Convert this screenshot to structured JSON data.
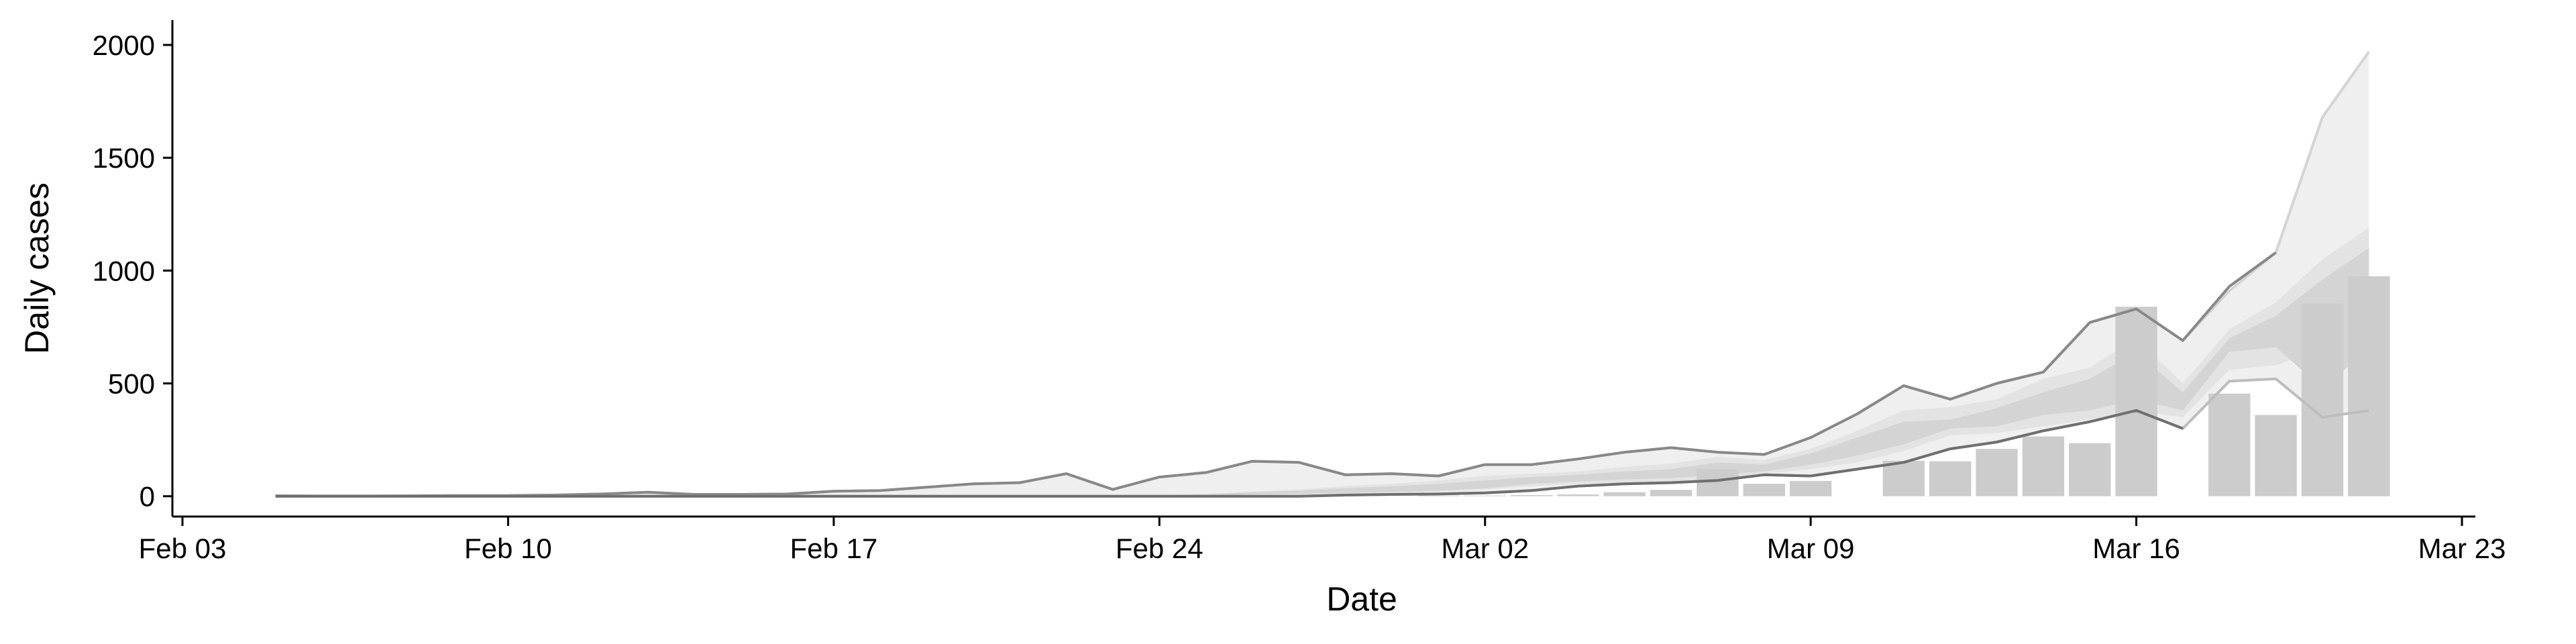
{
  "chart_data": {
    "type": "bar",
    "xlabel": "Date",
    "ylabel": "Daily cases",
    "ylim": [
      -90,
      2110
    ],
    "xlim": [
      "2020-02-03",
      "2020-03-23"
    ],
    "grid": false,
    "x_ticks": [
      {
        "date": "2020-02-03",
        "label": "Feb 03"
      },
      {
        "date": "2020-02-10",
        "label": "Feb 10"
      },
      {
        "date": "2020-02-17",
        "label": "Feb 17"
      },
      {
        "date": "2020-02-24",
        "label": "Feb 24"
      },
      {
        "date": "2020-03-02",
        "label": "Mar 02"
      },
      {
        "date": "2020-03-09",
        "label": "Mar 09"
      },
      {
        "date": "2020-03-16",
        "label": "Mar 16"
      },
      {
        "date": "2020-03-23",
        "label": "Mar 23"
      }
    ],
    "y_ticks": [
      0,
      500,
      1000,
      1500,
      2000
    ],
    "dates": [
      "2020-02-05",
      "2020-02-06",
      "2020-02-07",
      "2020-02-08",
      "2020-02-09",
      "2020-02-10",
      "2020-02-11",
      "2020-02-12",
      "2020-02-13",
      "2020-02-14",
      "2020-02-15",
      "2020-02-16",
      "2020-02-17",
      "2020-02-18",
      "2020-02-19",
      "2020-02-20",
      "2020-02-21",
      "2020-02-22",
      "2020-02-23",
      "2020-02-24",
      "2020-02-25",
      "2020-02-26",
      "2020-02-27",
      "2020-02-28",
      "2020-02-29",
      "2020-03-01",
      "2020-03-02",
      "2020-03-03",
      "2020-03-04",
      "2020-03-05",
      "2020-03-06",
      "2020-03-07",
      "2020-03-08",
      "2020-03-09",
      "2020-03-10",
      "2020-03-11",
      "2020-03-12",
      "2020-03-13",
      "2020-03-14",
      "2020-03-15",
      "2020-03-16",
      "2020-03-17",
      "2020-03-18",
      "2020-03-19",
      "2020-03-20",
      "2020-03-21"
    ],
    "bars": {
      "dates": [
        "2020-03-01",
        "2020-03-02",
        "2020-03-03",
        "2020-03-04",
        "2020-03-05",
        "2020-03-06",
        "2020-03-07",
        "2020-03-08",
        "2020-03-09",
        "2020-03-10",
        "2020-03-11",
        "2020-03-12",
        "2020-03-13",
        "2020-03-14",
        "2020-03-15",
        "2020-03-16",
        "2020-03-17",
        "2020-03-18",
        "2020-03-19",
        "2020-03-20",
        "2020-03-21"
      ],
      "values": [
        3,
        3,
        5,
        8,
        18,
        28,
        120,
        55,
        68,
        0,
        157,
        155,
        210,
        265,
        235,
        840,
        0,
        455,
        360,
        855,
        975
      ],
      "color": "#cccccc"
    },
    "bands": [
      {
        "color": "#efefef",
        "lower": [
          0,
          0,
          0,
          0,
          0,
          0,
          0,
          0,
          0,
          0,
          0,
          0,
          0,
          0,
          0,
          0,
          0,
          0,
          0,
          0,
          0,
          0,
          0,
          5,
          8,
          10,
          15,
          25,
          45,
          55,
          60,
          70,
          95,
          90,
          120,
          150,
          210,
          240,
          290,
          330,
          380,
          300,
          510,
          520,
          350,
          380
        ],
        "upper": [
          2,
          1,
          1,
          2,
          3,
          3,
          5,
          10,
          18,
          8,
          8,
          10,
          22,
          25,
          40,
          55,
          60,
          100,
          30,
          85,
          105,
          155,
          150,
          95,
          100,
          90,
          140,
          140,
          165,
          195,
          215,
          195,
          185,
          260,
          365,
          490,
          430,
          500,
          550,
          770,
          830,
          690,
          910,
          1080,
          1680,
          1970
        ],
        "upper_line_color": "#d0d0d0",
        "lower_line_color": "#c8c8c8"
      },
      {
        "color": "#e3e3e3",
        "lower": [
          0,
          0,
          0,
          0,
          0,
          0,
          0,
          0,
          0,
          0,
          0,
          0,
          0,
          0,
          0,
          0,
          0,
          0,
          0,
          0,
          0,
          5,
          8,
          10,
          15,
          20,
          30,
          45,
          55,
          60,
          65,
          75,
          100,
          120,
          150,
          200,
          270,
          280,
          310,
          340,
          380,
          350,
          560,
          580,
          660,
          720
        ],
        "upper": [
          0,
          0,
          0,
          0,
          0,
          0,
          0,
          0,
          0,
          0,
          0,
          0,
          0,
          0,
          0,
          0,
          0,
          0,
          0,
          5,
          10,
          20,
          30,
          45,
          55,
          70,
          90,
          100,
          110,
          130,
          145,
          175,
          160,
          210,
          290,
          380,
          395,
          430,
          520,
          570,
          700,
          500,
          740,
          860,
          1050,
          1190
        ],
        "upper_line_color": null,
        "lower_line_color": null
      },
      {
        "color": "#d4d4d4",
        "lower": [
          0,
          0,
          0,
          0,
          0,
          0,
          0,
          0,
          0,
          0,
          0,
          0,
          0,
          0,
          0,
          0,
          0,
          0,
          0,
          0,
          0,
          10,
          12,
          15,
          20,
          25,
          35,
          55,
          65,
          75,
          80,
          95,
          110,
          140,
          180,
          230,
          300,
          310,
          360,
          380,
          430,
          380,
          640,
          660,
          480,
          650
        ],
        "upper": [
          0,
          0,
          0,
          0,
          0,
          0,
          0,
          0,
          0,
          0,
          0,
          0,
          0,
          0,
          0,
          0,
          0,
          0,
          0,
          5,
          8,
          18,
          25,
          35,
          45,
          55,
          70,
          85,
          95,
          110,
          120,
          150,
          140,
          190,
          260,
          330,
          340,
          390,
          460,
          520,
          640,
          460,
          700,
          800,
          960,
          1100
        ],
        "upper_line_color": null,
        "lower_line_color": null
      }
    ],
    "lines": [
      {
        "values": [
          2,
          1,
          1,
          2,
          3,
          3,
          5,
          10,
          18,
          8,
          8,
          10,
          22,
          25,
          40,
          55,
          60,
          100,
          30,
          85,
          105,
          155,
          150,
          95,
          100,
          90,
          140,
          140,
          165,
          195,
          215,
          195,
          185,
          260,
          365,
          490,
          430,
          500,
          550,
          770,
          830,
          690,
          910,
          1080,
          1680,
          1970
        ],
        "color": "#d4d4d4"
      },
      {
        "values": [
          2,
          1,
          1,
          2,
          3,
          3,
          5,
          10,
          18,
          8,
          8,
          10,
          22,
          25,
          40,
          55,
          60,
          100,
          30,
          85,
          105,
          155,
          150,
          95,
          100,
          90,
          140,
          140,
          165,
          195,
          215,
          195,
          185,
          260,
          365,
          490,
          430,
          500,
          550,
          770,
          830,
          690,
          930,
          1080,
          null,
          null
        ],
        "color": "#888888"
      },
      {
        "values": [
          0,
          0,
          0,
          0,
          0,
          0,
          0,
          0,
          0,
          0,
          0,
          0,
          0,
          0,
          0,
          0,
          0,
          0,
          0,
          0,
          0,
          0,
          0,
          5,
          8,
          10,
          15,
          25,
          45,
          55,
          60,
          70,
          95,
          90,
          120,
          150,
          210,
          240,
          290,
          330,
          380,
          300,
          510,
          520,
          350,
          380
        ],
        "color": "#bdbdbd"
      },
      {
        "values": [
          0,
          0,
          0,
          0,
          0,
          0,
          0,
          0,
          0,
          0,
          0,
          0,
          0,
          0,
          0,
          0,
          0,
          0,
          0,
          0,
          0,
          0,
          0,
          5,
          8,
          10,
          15,
          25,
          45,
          55,
          60,
          70,
          95,
          90,
          120,
          150,
          210,
          240,
          290,
          330,
          380,
          300,
          null,
          null,
          null,
          null
        ],
        "color": "#6f6f6f"
      }
    ]
  }
}
